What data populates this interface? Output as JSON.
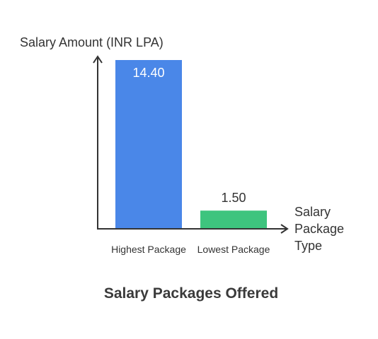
{
  "chart_data": {
    "type": "bar",
    "title": "Salary Packages Offered",
    "ylabel": "Salary Amount (INR LPA)",
    "xlabel_lines": [
      "Salary",
      "Package",
      "Type"
    ],
    "categories": [
      "Highest Package",
      "Lowest Package"
    ],
    "values": [
      14.4,
      1.5
    ],
    "value_labels": [
      "14.40",
      "1.50"
    ],
    "bar_colors": [
      "#4a87e8",
      "#3ec47e"
    ],
    "label_colors": [
      "#ffffff",
      "#333333"
    ],
    "axis_color": "#333333",
    "ylim": [
      0,
      14.4
    ],
    "grid": false,
    "legend": "none"
  }
}
